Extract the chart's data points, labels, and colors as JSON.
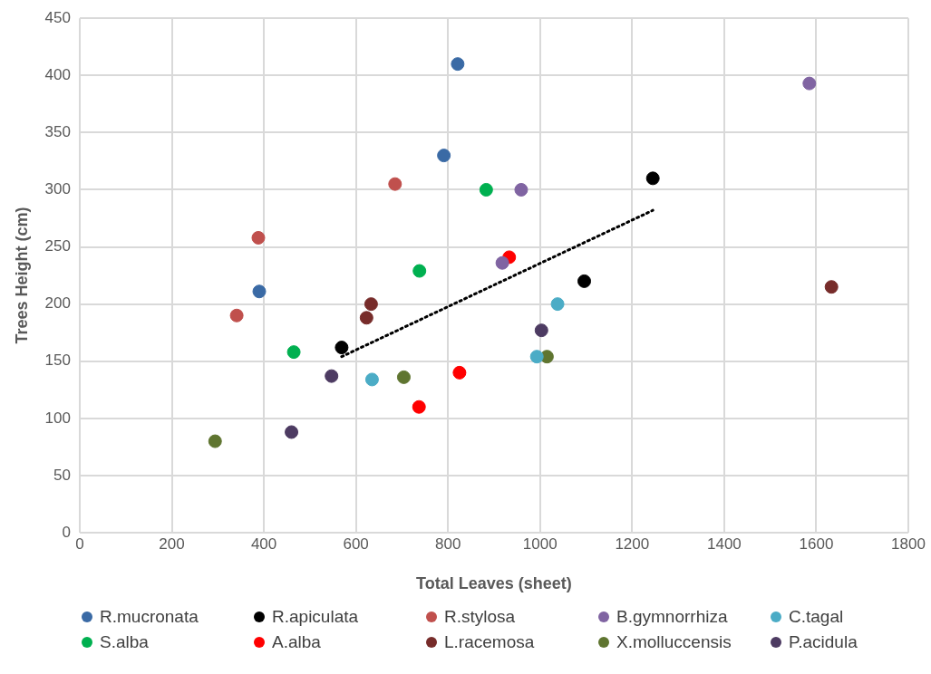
{
  "chart_data": {
    "type": "scatter",
    "xlabel": "Total Leaves (sheet)",
    "ylabel": "Trees Height (cm)",
    "xlim": [
      0,
      1800
    ],
    "xticks": [
      0,
      200,
      400,
      600,
      800,
      1000,
      1200,
      1400,
      1600,
      1800
    ],
    "ylim": [
      0,
      450
    ],
    "yticks": [
      0,
      50,
      100,
      150,
      200,
      250,
      300,
      350,
      400,
      450
    ],
    "grid": true,
    "legend": "bottom",
    "marker": "circle",
    "series": [
      {
        "name": "R.mucronata",
        "color": "#3a6aa5",
        "x": [
          821,
          791,
          390
        ],
        "values": [
          410,
          330,
          211
        ]
      },
      {
        "name": "R.apiculata",
        "color": "#000000",
        "x": [
          1245,
          1096,
          569
        ],
        "values": [
          310,
          220,
          162
        ]
      },
      {
        "name": "R.stylosa",
        "color": "#c0504d",
        "x": [
          685,
          388,
          341
        ],
        "values": [
          305,
          258,
          190
        ]
      },
      {
        "name": "B.gymnorrhiza",
        "color": "#8064a2",
        "x": [
          1585,
          959,
          918
        ],
        "values": [
          393,
          300,
          236
        ]
      },
      {
        "name": "C.tagal",
        "color": "#4bacc6",
        "x": [
          1038,
          993,
          635
        ],
        "values": [
          200,
          154,
          134
        ]
      },
      {
        "name": "S.alba",
        "color": "#00b050",
        "x": [
          883,
          738,
          465
        ],
        "values": [
          300,
          229,
          158
        ]
      },
      {
        "name": "A.alba",
        "color": "#ff0000",
        "x": [
          933,
          825,
          737
        ],
        "values": [
          241,
          140,
          110
        ]
      },
      {
        "name": "L.racemosa",
        "color": "#772c2a",
        "x": [
          1633,
          633,
          623
        ],
        "values": [
          215,
          200,
          188
        ]
      },
      {
        "name": "X.molluccensis",
        "color": "#5f7530",
        "x": [
          1015,
          704,
          294
        ],
        "values": [
          154,
          136,
          80
        ]
      },
      {
        "name": "P.acidula",
        "color": "#4d3b62",
        "x": [
          1003,
          547,
          460
        ],
        "values": [
          177,
          137,
          88
        ]
      },
      {
        "type": "line",
        "color": "#000000",
        "line_style": "dotted",
        "marker": "none",
        "x": [
          569,
          1245
        ],
        "values": [
          154,
          282
        ]
      }
    ]
  }
}
